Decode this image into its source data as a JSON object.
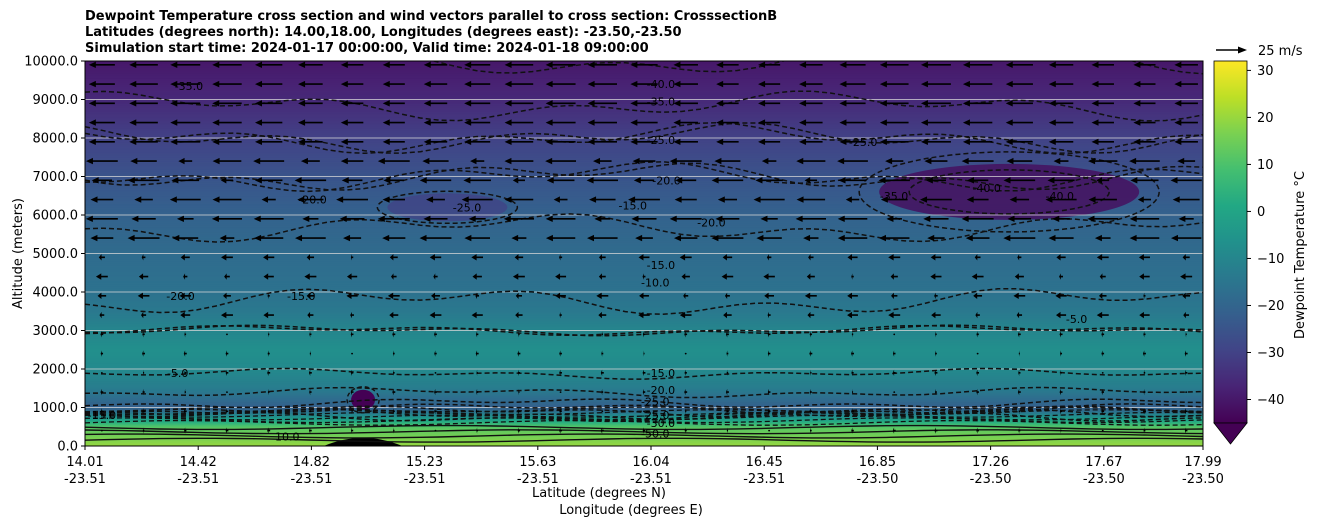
{
  "chart_data": {
    "type": "contourf",
    "title_lines": [
      "Dewpoint Temperature cross section and wind vectors parallel to cross section: CrosssectionB",
      "Latitudes (degrees north): 14.00,18.00, Longitudes (degrees east): -23.50,-23.50",
      "Simulation start time: 2024-01-17 00:00:00, Valid time: 2024-01-18 09:00:00"
    ],
    "ylabel": "Altitude (meters)",
    "xlabel_lines": [
      "Latitude (degrees N)",
      "Longitude (degrees E)"
    ],
    "ylim": [
      0,
      10000
    ],
    "xlim": [
      14.01,
      17.99
    ],
    "y_ticks": [
      "0.0",
      "1000.0",
      "2000.0",
      "3000.0",
      "4000.0",
      "5000.0",
      "6000.0",
      "7000.0",
      "8000.0",
      "9000.0",
      "10000.0"
    ],
    "x_ticks": [
      {
        "lat": "14.01",
        "lon": "-23.51"
      },
      {
        "lat": "14.42",
        "lon": "-23.51"
      },
      {
        "lat": "14.82",
        "lon": "-23.51"
      },
      {
        "lat": "15.23",
        "lon": "-23.51"
      },
      {
        "lat": "15.63",
        "lon": "-23.51"
      },
      {
        "lat": "16.04",
        "lon": "-23.51"
      },
      {
        "lat": "16.45",
        "lon": "-23.51"
      },
      {
        "lat": "16.85",
        "lon": "-23.50"
      },
      {
        "lat": "17.26",
        "lon": "-23.50"
      },
      {
        "lat": "17.67",
        "lon": "-23.50"
      },
      {
        "lat": "17.99",
        "lon": "-23.50"
      }
    ],
    "grid": true,
    "colorbar": {
      "label": "Dewpoint Temperature $^\\circ$C",
      "label_text": "Dewpoint Temperature °C",
      "range": [
        -45,
        32
      ],
      "ticks": [
        "30",
        "20",
        "10",
        "0",
        "−10",
        "−20",
        "−30",
        "−40"
      ],
      "colormap": "viridis",
      "extend": "min"
    },
    "quiver_key": {
      "label": "25 m/s",
      "speed": 25
    },
    "profile": {
      "altitudes": [
        0,
        500,
        1000,
        1500,
        2000,
        2500,
        3000,
        3500,
        4000,
        4500,
        5000,
        6000,
        7000,
        8000,
        9000,
        10000
      ],
      "dewpoint": [
        20,
        12,
        -22,
        -13,
        -9,
        -7,
        -10,
        -14,
        -16,
        -17,
        -18,
        -21,
        -25,
        -30,
        -36,
        -40
      ]
    },
    "contour_labels": [
      {
        "text": "-35.0",
        "lat": 14.38,
        "alt": 9350
      },
      {
        "text": "-40.0",
        "lat": 16.06,
        "alt": 9400
      },
      {
        "text": "-35.0",
        "lat": 16.06,
        "alt": 8950
      },
      {
        "text": "-25.0",
        "lat": 16.06,
        "alt": 7950
      },
      {
        "text": "-20.0",
        "lat": 16.08,
        "alt": 6900
      },
      {
        "text": "-15.0",
        "lat": 15.96,
        "alt": 6250
      },
      {
        "text": "-15.0",
        "lat": 16.06,
        "alt": 4700
      },
      {
        "text": "-10.0",
        "lat": 16.04,
        "alt": 4250
      },
      {
        "text": "-15.0",
        "lat": 16.06,
        "alt": 1900
      },
      {
        "text": "-20.0",
        "lat": 16.06,
        "alt": 1450
      },
      {
        "text": "-25.0",
        "lat": 16.04,
        "alt": 1150
      },
      {
        "text": "-25.0",
        "lat": 16.04,
        "alt": 800
      },
      {
        "text": "-30.0",
        "lat": 16.06,
        "alt": 600
      },
      {
        "text": "-50.0",
        "lat": 16.04,
        "alt": 330
      },
      {
        "text": "-20.0",
        "lat": 14.82,
        "alt": 6400
      },
      {
        "text": "-25.0",
        "lat": 15.37,
        "alt": 6200
      },
      {
        "text": "-20.0",
        "lat": 16.24,
        "alt": 5800
      },
      {
        "text": "-25.0",
        "lat": 16.78,
        "alt": 7900
      },
      {
        "text": "-35.0",
        "lat": 16.89,
        "alt": 6500
      },
      {
        "text": "-40.0",
        "lat": 17.22,
        "alt": 6700
      },
      {
        "text": "-40.0",
        "lat": 17.48,
        "alt": 6500
      },
      {
        "text": "-20.0",
        "lat": 14.35,
        "alt": 3900
      },
      {
        "text": "-15.0",
        "lat": 14.78,
        "alt": 3900
      },
      {
        "text": "-5.0",
        "lat": 14.34,
        "alt": 1900
      },
      {
        "text": "-15.0",
        "lat": 14.07,
        "alt": 800
      },
      {
        "text": "10.0",
        "lat": 14.73,
        "alt": 250
      },
      {
        "text": "-5.0",
        "lat": 17.54,
        "alt": 3300
      }
    ]
  }
}
